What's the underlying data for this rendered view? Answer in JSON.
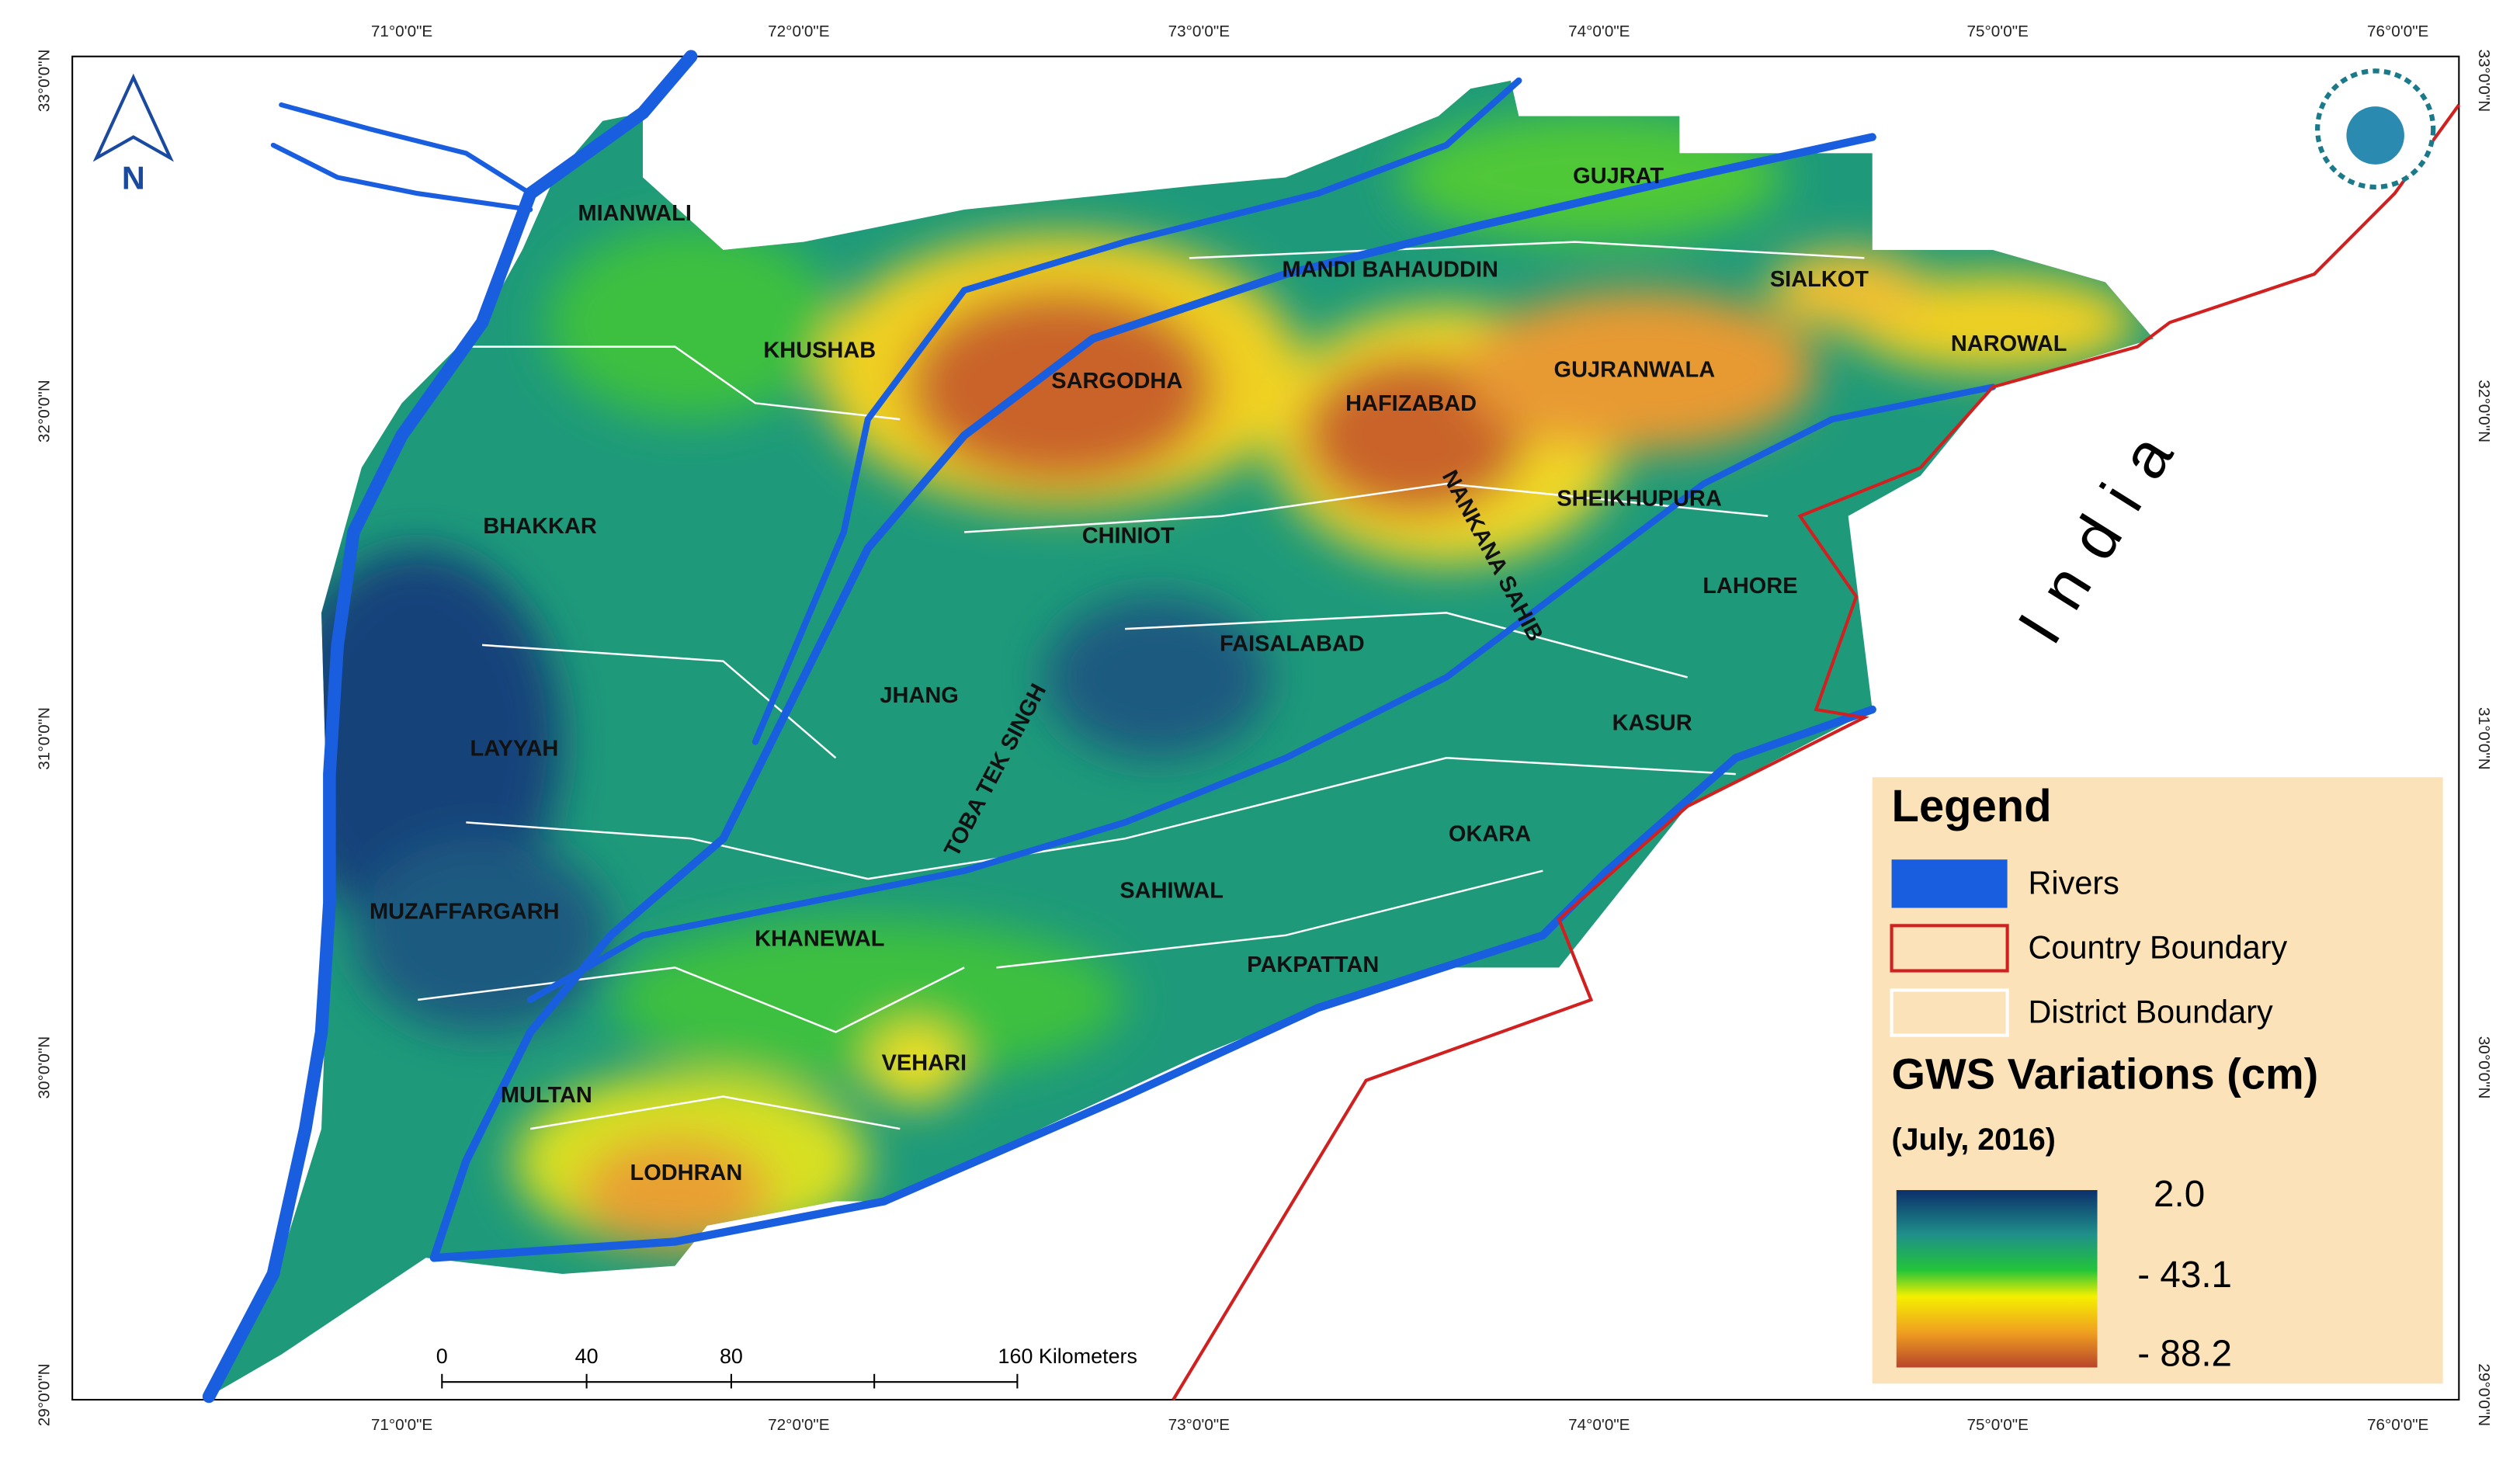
{
  "map": {
    "x_labels": [
      "71°0'0\"E",
      "72°0'0\"E",
      "73°0'0\"E",
      "74°0'0\"E",
      "75°0'0\"E",
      "76°0'0\"E"
    ],
    "y_labels": [
      "33°0'0\"N",
      "32°0'0\"N",
      "31°0'0\"N",
      "30°0'0\"N",
      "29°0'0\"N"
    ],
    "districts": [
      "MIANWALI",
      "KHUSHAB",
      "SARGODHA",
      "MANDI BAHAUDDIN",
      "GUJRAT",
      "SIALKOT",
      "NAROWAL",
      "GUJRANWALA",
      "HAFIZABAD",
      "SHEIKHUPURA",
      "NANKANA SAHIB",
      "CHINIOT",
      "BHAKKAR",
      "LAHORE",
      "FAISALABAD",
      "JHANG",
      "TOBA TEK SINGH",
      "LAYYAH",
      "KASUR",
      "OKARA",
      "SAHIWAL",
      "MUZAFFARGARH",
      "KHANEWAL",
      "PAKPATTAN",
      "VEHARI",
      "MULTAN",
      "LODHRAN"
    ],
    "country_label": "India",
    "north": "N",
    "scale_bar": [
      "0",
      "40",
      "80",
      "160 Kilometers"
    ]
  },
  "legend": {
    "title": "Legend",
    "items": [
      "Rivers",
      "Country Boundary",
      "District Boundary"
    ],
    "gws_title": "GWS Variations (cm)",
    "date": "(July, 2016)",
    "scale_labels": [
      "2.0",
      "- 43.1",
      "- 88.2"
    ]
  }
}
